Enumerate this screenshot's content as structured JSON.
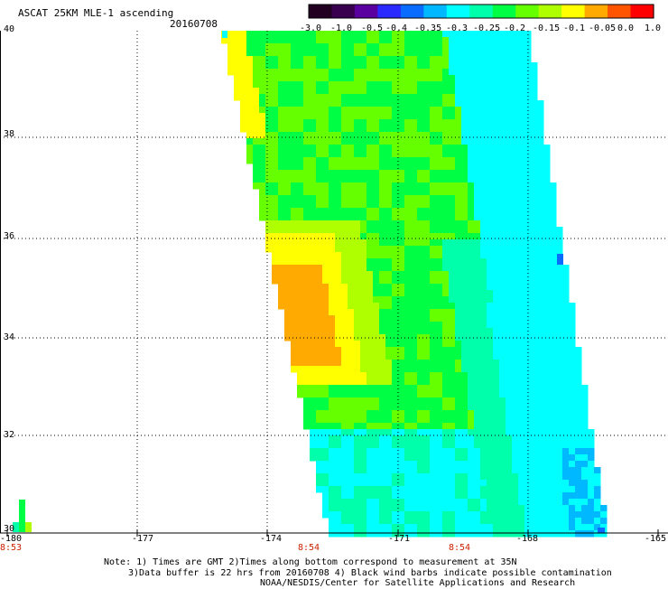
{
  "header": {
    "title": "ASCAT 25KM MLE-1 ascending",
    "date": "20160708"
  },
  "colorbar": {
    "colors": [
      "#220022",
      "#3a0050",
      "#5a00a0",
      "#2a2aff",
      "#0a6bff",
      "#00b8ff",
      "#00ffff",
      "#00ffaa",
      "#00ff44",
      "#66ff00",
      "#b0ff00",
      "#ffff00",
      "#ffaa00",
      "#ff5500",
      "#ff0000"
    ],
    "labels": [
      "-3.0",
      "-1.0",
      "-0.5",
      "-0.4",
      "-0.35",
      "-0.3",
      "-0.25",
      "-0.2",
      "-0.15",
      "-0.1",
      "-0.05",
      "0.0",
      "1.0"
    ]
  },
  "map": {
    "lat_labels": [
      "40",
      "38",
      "36",
      "34",
      "32",
      "30"
    ],
    "lon_labels": [
      "-180",
      "-177",
      "-174",
      "-171",
      "-168",
      "-165"
    ],
    "time_labels": [
      "8:53",
      "8:54",
      "8:54"
    ]
  },
  "footer": {
    "line1": "Note: 1) Times are GMT 2)Times along bottom correspond to measurement at 35N",
    "line2": "3)Data buffer is 22 hrs from 20160708 4) Black wind barbs indicate possible contamination",
    "line3": "NOAA/NESDIS/Center for Satellite Applications and Research"
  },
  "swath_colors": {
    "cyan": "#00ffff",
    "aqua": "#00ffaa",
    "green": "#00ff44",
    "lime": "#66ff00",
    "yellowgreen": "#b0ff00",
    "yellow": "#ffff00",
    "orange": "#ffaa00",
    "skyblue": "#00b8ff",
    "blue": "#0a6bff"
  }
}
